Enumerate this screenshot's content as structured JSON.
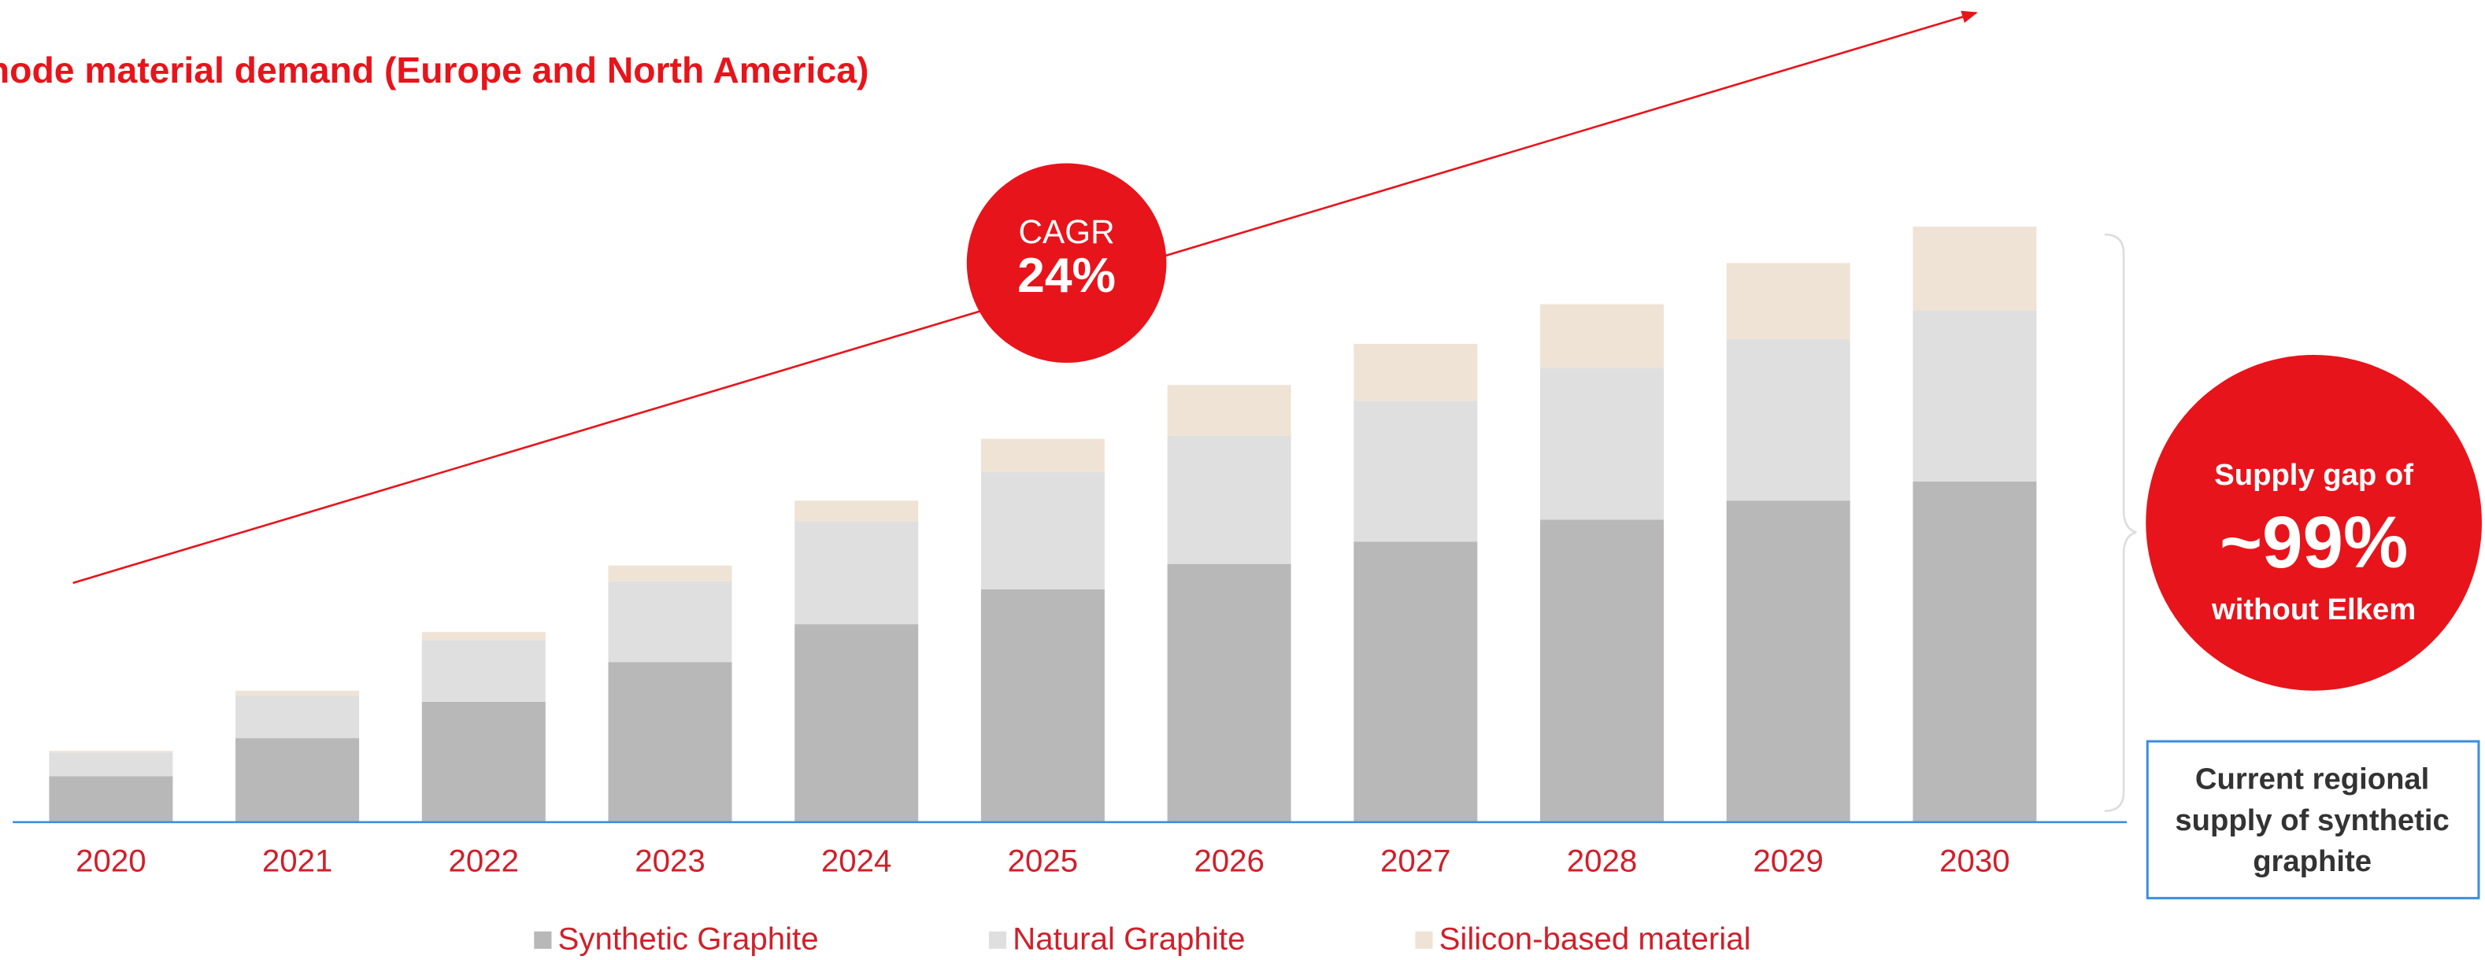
{
  "chart_data": {
    "type": "stacked-bar",
    "title": "node material demand (Europe and North America)",
    "categories": [
      "2020",
      "2021",
      "2022",
      "2023",
      "2024",
      "2025",
      "2026",
      "2027",
      "2028",
      "2029",
      "2030"
    ],
    "series": [
      {
        "name": "Synthetic Graphite",
        "color": "#b9b8b8",
        "values": [
          29,
          53,
          76,
          101,
          125,
          147,
          163,
          177,
          191,
          203,
          215
        ]
      },
      {
        "name": "Natural Graphite",
        "color": "#e0dfdf",
        "values": [
          15,
          27,
          39,
          51,
          65,
          74,
          81,
          89,
          96,
          102,
          108
        ]
      },
      {
        "name": "Silicon-based material",
        "color": "#efe3d6",
        "values": [
          1,
          3,
          5,
          10,
          13,
          21,
          32,
          36,
          40,
          48,
          53
        ]
      }
    ],
    "ylim": [
      0,
      380
    ],
    "annotations": {
      "cagr_label": "CAGR",
      "cagr_value": "24%",
      "gap_line1": "Supply gap of",
      "gap_value": "~99%",
      "gap_line2": "without Elkem",
      "supply_box": [
        "Current regional",
        "supply of synthetic",
        "graphite"
      ]
    }
  }
}
